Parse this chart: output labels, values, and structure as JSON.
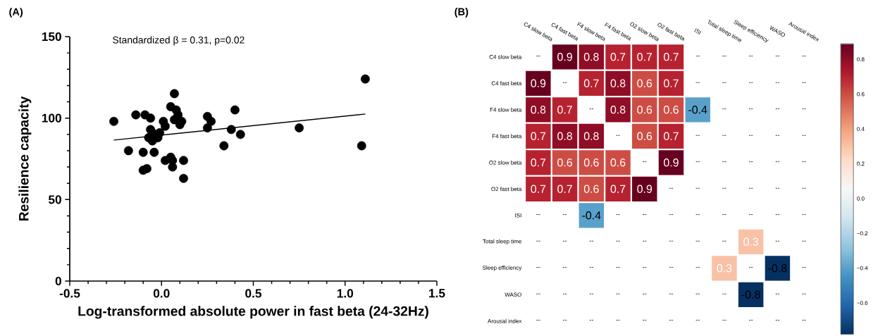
{
  "chart_data": [
    {
      "type": "scatter",
      "title": "(A)",
      "annotations": [
        "Standardized β = 0.31, p=0.02"
      ],
      "xlabel": "Log-transformed absolute power in fast beta (24-32Hz)",
      "ylabel": "Resilience capacity",
      "series": [
        {
          "type": "scatter",
          "marker": "circle",
          "color": "#000000",
          "x": [
            -0.26,
            -0.18,
            -0.14,
            -0.1,
            -0.1,
            -0.09,
            -0.08,
            -0.06,
            -0.06,
            -0.07,
            -0.05,
            -0.05,
            -0.04,
            -0.02,
            -0.01,
            0.01,
            0.02,
            0.02,
            0.05,
            0.05,
            0.06,
            0.06,
            0.07,
            0.08,
            0.07,
            0.09,
            0.1,
            0.11,
            0.12,
            0.12,
            0.25,
            0.25,
            0.27,
            0.34,
            0.38,
            0.4,
            0.43,
            0.75,
            1.09,
            1.11
          ],
          "values": [
            98,
            80,
            102,
            79,
            68,
            102,
            69,
            100,
            93,
            88,
            91,
            86,
            79,
            88,
            91,
            98,
            74,
            95,
            76,
            107,
            74,
            70,
            115,
            105,
            99,
            102,
            96,
            98,
            63,
            74,
            94,
            101,
            98,
            83,
            93,
            105,
            90,
            94,
            83,
            124
          ]
        },
        {
          "type": "line",
          "color": "#000000",
          "x": [
            -0.26,
            1.11
          ],
          "values": [
            86.5,
            102.5
          ]
        }
      ],
      "xlim": [
        -0.5,
        1.5
      ],
      "xticks": [
        -0.5,
        {
          "value": 0,
          "label": "0.0"
        },
        0.5,
        {
          "value": 1,
          "label": "1.0"
        },
        1.5
      ],
      "ylim": [
        0,
        150
      ],
      "yticks": [
        0,
        50,
        100,
        150
      ]
    },
    {
      "type": "heatmap",
      "title": "(B)",
      "categories": [
        "C4 slow beta",
        "C4 fast beta",
        "F4 slow beta",
        "F4 fast beta",
        "O2 slow beta",
        "O2 fast beta",
        "ISI",
        "Total sleep time",
        "Sleep efficiency",
        "WASO",
        "Arousal index"
      ],
      "y_categories": [
        "C4 slow beta",
        "C4 fast beta",
        "F4 slow beta",
        "F4 fast beta",
        "O2 slow beta",
        "O2 fast beta",
        "ISI",
        "Total sleep time",
        "Sleep efficiency",
        "WASO",
        "Arousal index"
      ],
      "cells": [
        [
          null,
          0.9,
          0.8,
          0.7,
          0.7,
          0.7,
          null,
          null,
          null,
          null,
          null
        ],
        [
          0.9,
          null,
          0.7,
          0.8,
          0.6,
          0.7,
          null,
          null,
          null,
          null,
          null
        ],
        [
          0.8,
          0.7,
          null,
          0.8,
          0.6,
          0.6,
          -0.4,
          null,
          null,
          null,
          null
        ],
        [
          0.7,
          0.8,
          0.8,
          null,
          0.6,
          0.7,
          null,
          null,
          null,
          null,
          null
        ],
        [
          0.7,
          0.6,
          0.6,
          0.6,
          null,
          0.9,
          null,
          null,
          null,
          null,
          null
        ],
        [
          0.7,
          0.7,
          0.6,
          0.7,
          0.9,
          null,
          null,
          null,
          null,
          null,
          null
        ],
        [
          null,
          null,
          -0.4,
          null,
          null,
          null,
          null,
          null,
          null,
          null,
          null
        ],
        [
          null,
          null,
          null,
          null,
          null,
          null,
          null,
          null,
          0.3,
          null,
          null
        ],
        [
          null,
          null,
          null,
          null,
          null,
          null,
          null,
          0.3,
          null,
          -0.8,
          null
        ],
        [
          null,
          null,
          null,
          null,
          null,
          null,
          null,
          null,
          -0.8,
          null,
          null
        ],
        [
          null,
          null,
          null,
          null,
          null,
          null,
          null,
          null,
          null,
          null,
          null
        ]
      ],
      "cell_labels": [
        [
          "--",
          "0.9",
          "0.8",
          "0.7",
          "0.7",
          "0.7",
          "--",
          "--",
          "--",
          "--",
          "--"
        ],
        [
          "0.9",
          "--",
          "0.7",
          "0.8",
          "0.6",
          "0.7",
          "--",
          "--",
          "--",
          "--",
          "--"
        ],
        [
          "0.8",
          "0.7",
          "--",
          "0.8",
          "0.6",
          "0.6",
          "-0.4",
          "--",
          "--",
          "--",
          "--"
        ],
        [
          "0.7",
          "0.8",
          "0.8",
          "--",
          "0.6",
          "0.7",
          "--",
          "--",
          "--",
          "--",
          "--"
        ],
        [
          "0.7",
          "0.6",
          "0.6",
          "0.6",
          "--",
          "0.9",
          "--",
          "--",
          "--",
          "--",
          "--"
        ],
        [
          "0.7",
          "0.7",
          "0.6",
          "0.7",
          "0.9",
          "--",
          "--",
          "--",
          "--",
          "--",
          "--"
        ],
        [
          "--",
          "--",
          "-0.4",
          "--",
          "--",
          "--",
          "--",
          "--",
          "--",
          "--",
          "--"
        ],
        [
          "--",
          "--",
          "--",
          "--",
          "--",
          "--",
          "--",
          "--",
          "0.3",
          "--",
          "--"
        ],
        [
          "--",
          "--",
          "--",
          "--",
          "--",
          "--",
          "--",
          "0.3",
          "--",
          "-0.8",
          "--"
        ],
        [
          "--",
          "--",
          "--",
          "--",
          "--",
          "--",
          "--",
          "--",
          "-0.8",
          "--",
          "--"
        ],
        [
          "--",
          "--",
          "--",
          "--",
          "--",
          "--",
          "--",
          "--",
          "--",
          "--",
          "--"
        ]
      ],
      "clim": [
        -0.78,
        0.89
      ],
      "cticks": [
        {
          "value": -0.6,
          "label": "−0.6"
        },
        {
          "value": -0.4,
          "label": "−0.4"
        },
        {
          "value": -0.2,
          "label": "−0.2"
        },
        {
          "value": 0,
          "label": "0.0"
        },
        0.2,
        0.4,
        0.6,
        0.8
      ]
    }
  ]
}
